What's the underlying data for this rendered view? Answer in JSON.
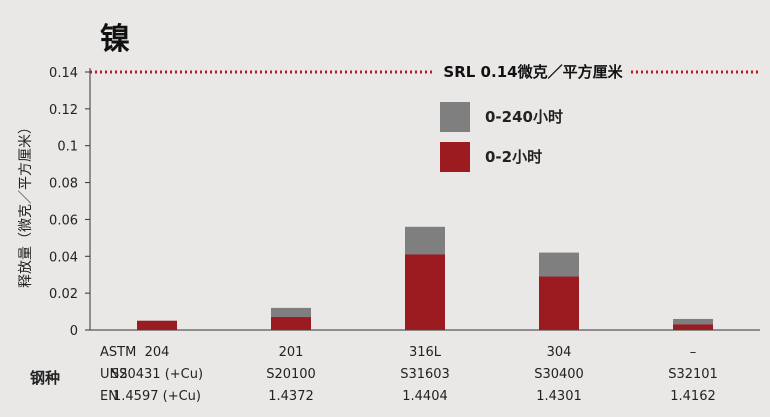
{
  "chart_data": {
    "type": "bar",
    "title": "镍",
    "ylabel": "释放量（微克／平方厘米）",
    "ylim": [
      0,
      0.14
    ],
    "yticks": [
      "0",
      "0.02",
      "0.04",
      "0.06",
      "0.08",
      "0.1",
      "0.12",
      "0.14"
    ],
    "ytick_values": [
      0,
      0.02,
      0.04,
      0.06,
      0.08,
      0.1,
      0.12,
      0.14
    ],
    "categories": [
      "204",
      "201",
      "316L",
      "304",
      "–"
    ],
    "series": [
      {
        "name": "0-240小时",
        "values": [
          0.005,
          0.012,
          0.056,
          0.042,
          0.006
        ],
        "color": "#7f7f7f"
      },
      {
        "name": "0-2小时",
        "values": [
          0.005,
          0.007,
          0.041,
          0.029,
          0.003
        ],
        "color": "#9b1b20"
      }
    ],
    "reference_line": {
      "label": "SRL 0.14微克／平方厘米",
      "value": 0.14,
      "color": "#b21f24"
    },
    "legend_position": "top-center"
  },
  "steel_table": {
    "label": "钢种",
    "row_labels": [
      "ASTM",
      "UNS",
      "EN"
    ],
    "columns": [
      {
        "astm": "204",
        "uns": "S20431 (+Cu)",
        "en": "1.4597 (+Cu)"
      },
      {
        "astm": "201",
        "uns": "S20100",
        "en": "1.4372"
      },
      {
        "astm": "316L",
        "uns": "S31603",
        "en": "1.4404"
      },
      {
        "astm": "304",
        "uns": "S30400",
        "en": "1.4301"
      },
      {
        "astm": "–",
        "uns": "S32101",
        "en": "1.4162"
      }
    ]
  }
}
